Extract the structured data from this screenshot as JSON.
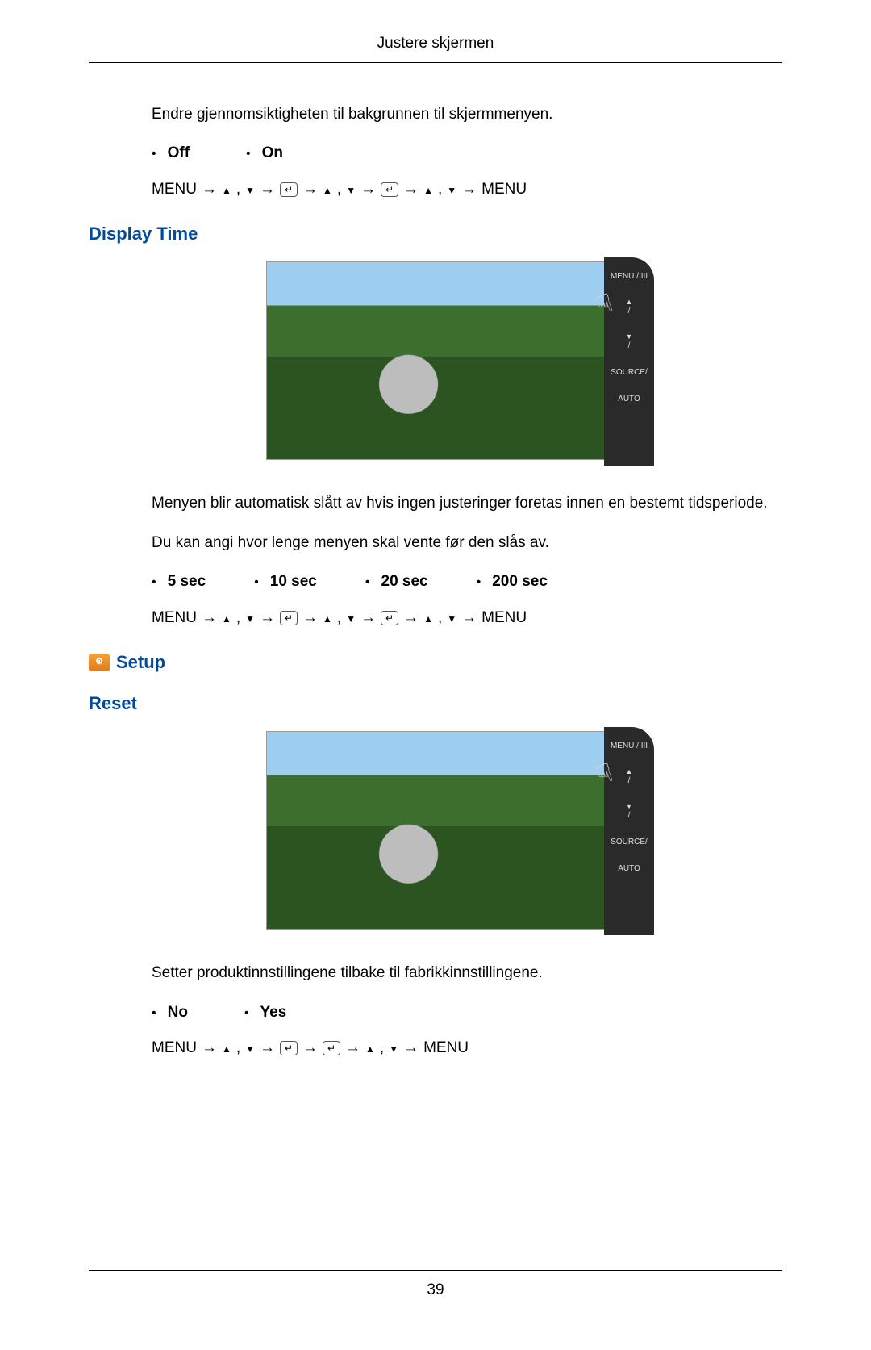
{
  "header": {
    "title": "Justere skjermen"
  },
  "section1": {
    "intro": "Endre gjennomsiktigheten til bakgrunnen til skjermmenyen.",
    "options": [
      "Off",
      "On"
    ],
    "nav": {
      "start": "MENU",
      "end": "MENU"
    }
  },
  "displayTime": {
    "heading": "Display Time",
    "panel": {
      "btn1": "MENU / III",
      "btn2": "/",
      "btn3": "/",
      "btn4": "SOURCE/",
      "btn5": "AUTO"
    },
    "para1": "Menyen blir automatisk slått av hvis ingen justeringer foretas innen en bestemt tidsperiode.",
    "para2": "Du kan angi hvor lenge menyen skal vente før den slås av.",
    "options": [
      "5 sec",
      "10 sec",
      "20 sec",
      "200 sec"
    ],
    "nav": {
      "start": "MENU",
      "end": "MENU"
    }
  },
  "setup": {
    "heading": "Setup"
  },
  "reset": {
    "heading": "Reset",
    "panel": {
      "btn1": "MENU / III",
      "btn2": "/",
      "btn3": "/",
      "btn4": "SOURCE/",
      "btn5": "AUTO"
    },
    "para": "Setter produktinnstillingene tilbake til fabrikkinnstillingene.",
    "options": [
      "No",
      "Yes"
    ],
    "nav": {
      "start": "MENU",
      "end": "MENU"
    }
  },
  "footer": {
    "page": "39"
  },
  "colors": {
    "heading_blue": "#004b9b",
    "text_black": "#000000",
    "icon_orange": "#e8851e"
  }
}
